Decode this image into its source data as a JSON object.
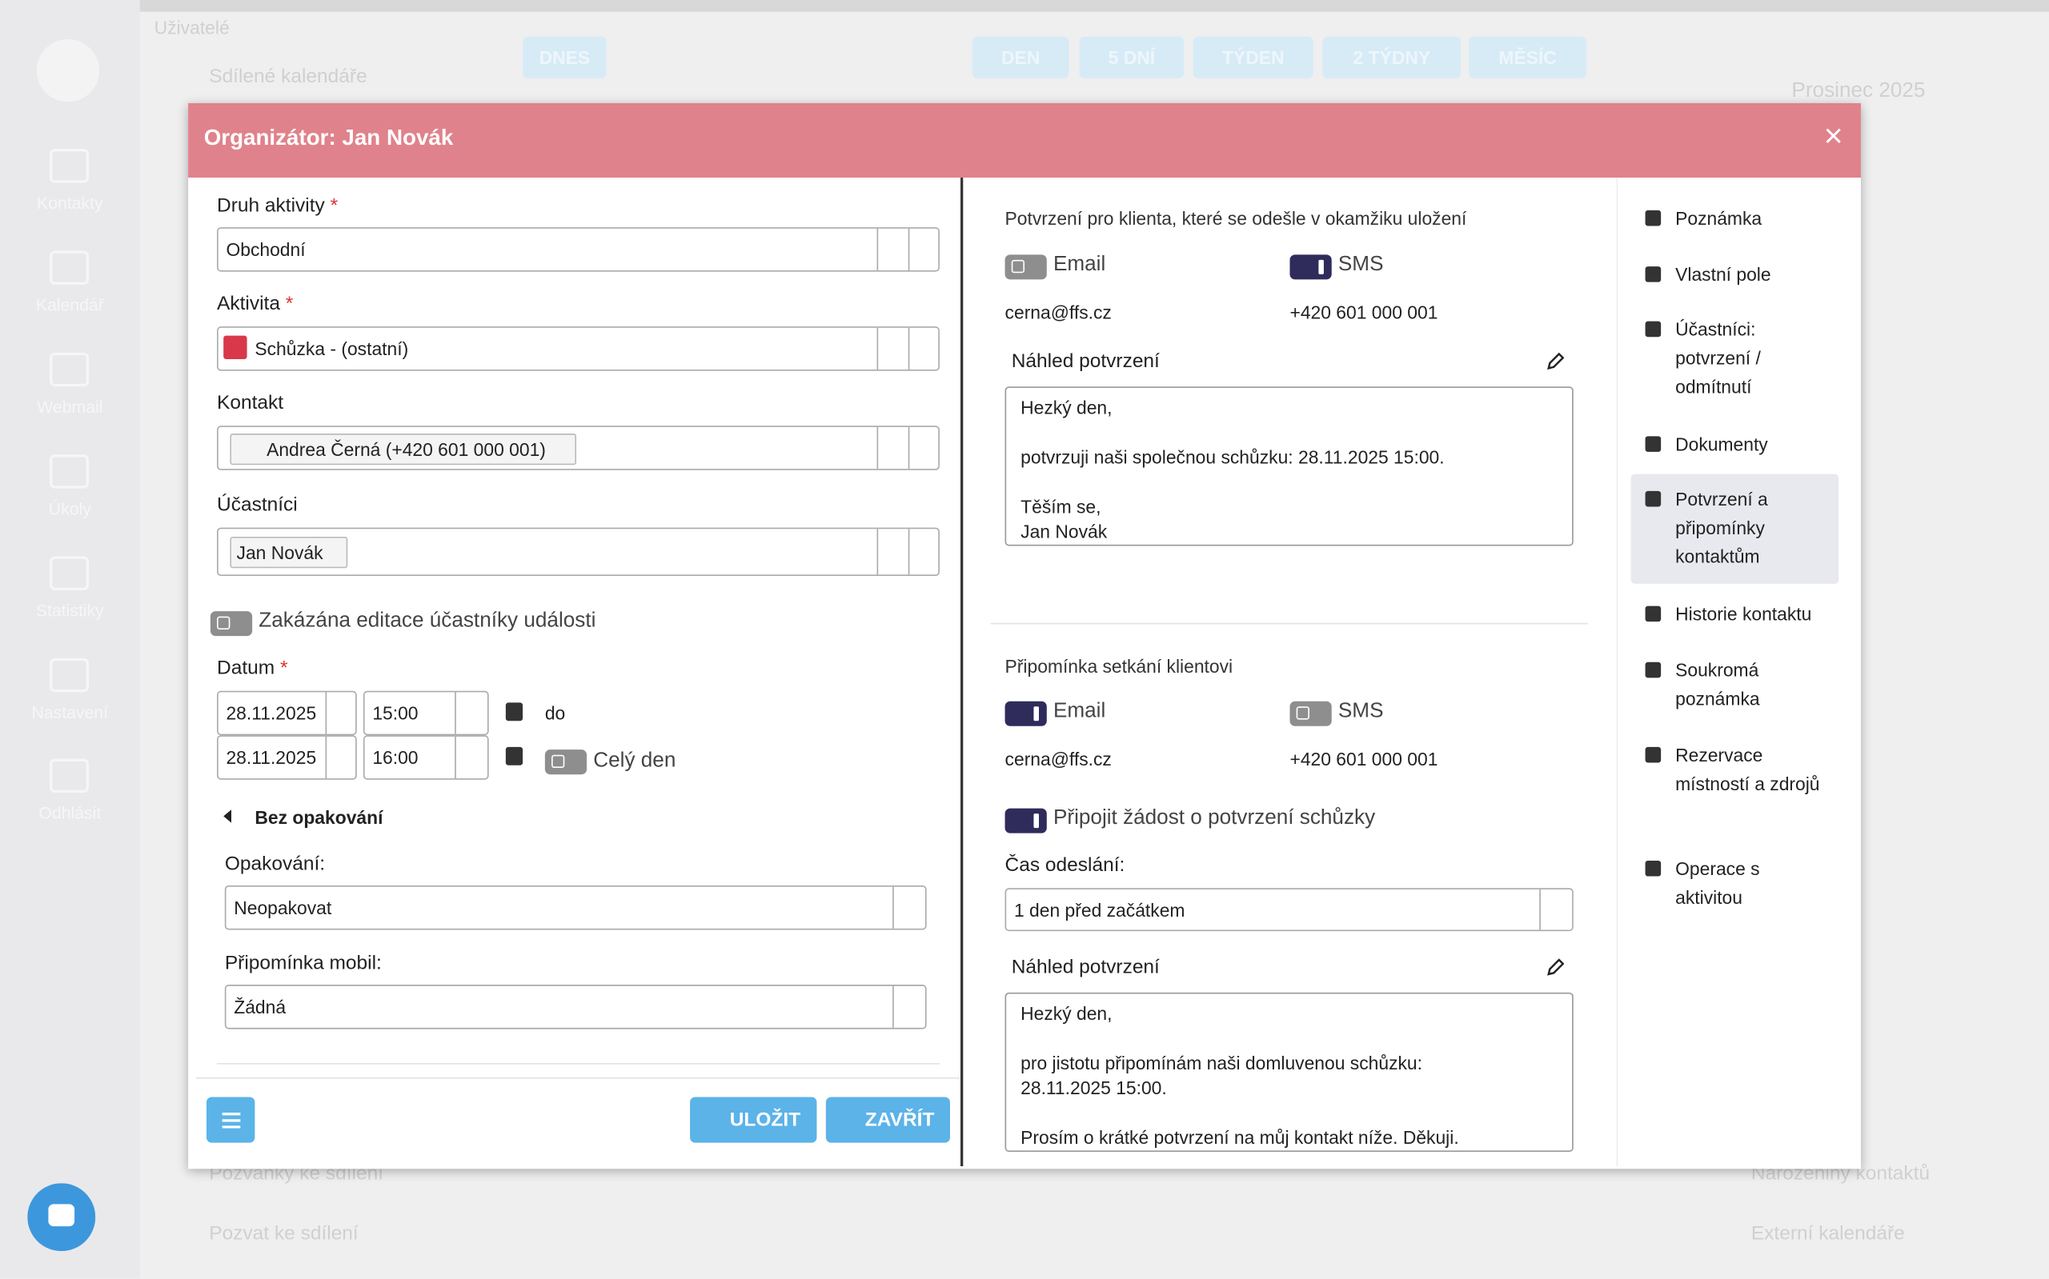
{
  "sidebar": {
    "items": [
      "Kontakty",
      "Kalendář",
      "Webmail",
      "Úkoly",
      "Statistiky",
      "Nastavení",
      "Odhlásit"
    ]
  },
  "background": {
    "users": "Uživatelé",
    "shared": "Sdílené kalendáře",
    "toolbar": [
      "DNES",
      "DEN",
      "5 DNÍ",
      "TÝDEN",
      "2 TÝDNY",
      "MĚSÍC"
    ],
    "month": "Prosinec 2025",
    "bottom": [
      "Pozvánky ke sdílení",
      "Pozvat ke sdílení",
      "Narozeniny kontaktů",
      "Externí kalendáře"
    ]
  },
  "modal": {
    "title": "Organizátor: Jan Novák",
    "form": {
      "activity_type_label": "Druh aktivity",
      "activity_type": "Obchodní",
      "activity_label": "Aktivita",
      "activity": "Schůzka - (ostatní)",
      "contact_label": "Kontakt",
      "contact": "Andrea Černá (+420 601 000 001)",
      "participants_label": "Účastníci",
      "participant": "Jan Novák",
      "lock_edit": "Zakázána editace účastníky události",
      "date_label": "Datum",
      "start_date": "28.11.2025",
      "start_time": "15:00",
      "to": "do",
      "end_date": "28.11.2025",
      "end_time": "16:00",
      "all_day": "Celý den",
      "repeat_toggle": "Bez opakování",
      "repeat_label": "Opakování:",
      "repeat": "Neopakovat",
      "mobile_label": "Připomínka mobil:",
      "mobile": "Žádná",
      "required": "*"
    },
    "buttons": {
      "save": "ULOŽIT",
      "close": "ZAVŘÍT"
    },
    "confirmation": {
      "heading": "Potvrzení pro klienta, které se odešle v okamžiku uložení",
      "email": "Email",
      "sms": "SMS",
      "email_address": "cerna@ffs.cz",
      "phone": "+420 601 000 001",
      "preview_label": "Náhled potvrzení",
      "preview": "Hezký den,\n\npotvrzuji naši společnou schůzku: 28.11.2025 15:00.\n\nTěším se,\nJan Novák"
    },
    "reminder": {
      "heading": "Připomínka setkání klientovi",
      "email": "Email",
      "sms": "SMS",
      "email_address": "cerna@ffs.cz",
      "phone": "+420 601 000 001",
      "attach": "Připojit žádost o potvrzení schůzky",
      "send_time_label": "Čas odeslání:",
      "send_time": "1 den před začátkem",
      "preview_label": "Náhled potvrzení",
      "preview": "Hezký den,\n\npro jistotu připomínám naši domluvenou schůzku:\n28.11.2025 15:00.\n\nProsím o krátké potvrzení na můj kontakt níže. Děkuji."
    },
    "nav": [
      "Poznámka",
      "Vlastní pole",
      "Účastníci: potvrzení / odmítnutí",
      "Dokumenty",
      "Potvrzení a připomínky kontaktům",
      "Historie kontaktu",
      "Soukromá poznámka",
      "Rezervace místností a zdrojů",
      "Operace s aktivitou"
    ]
  }
}
